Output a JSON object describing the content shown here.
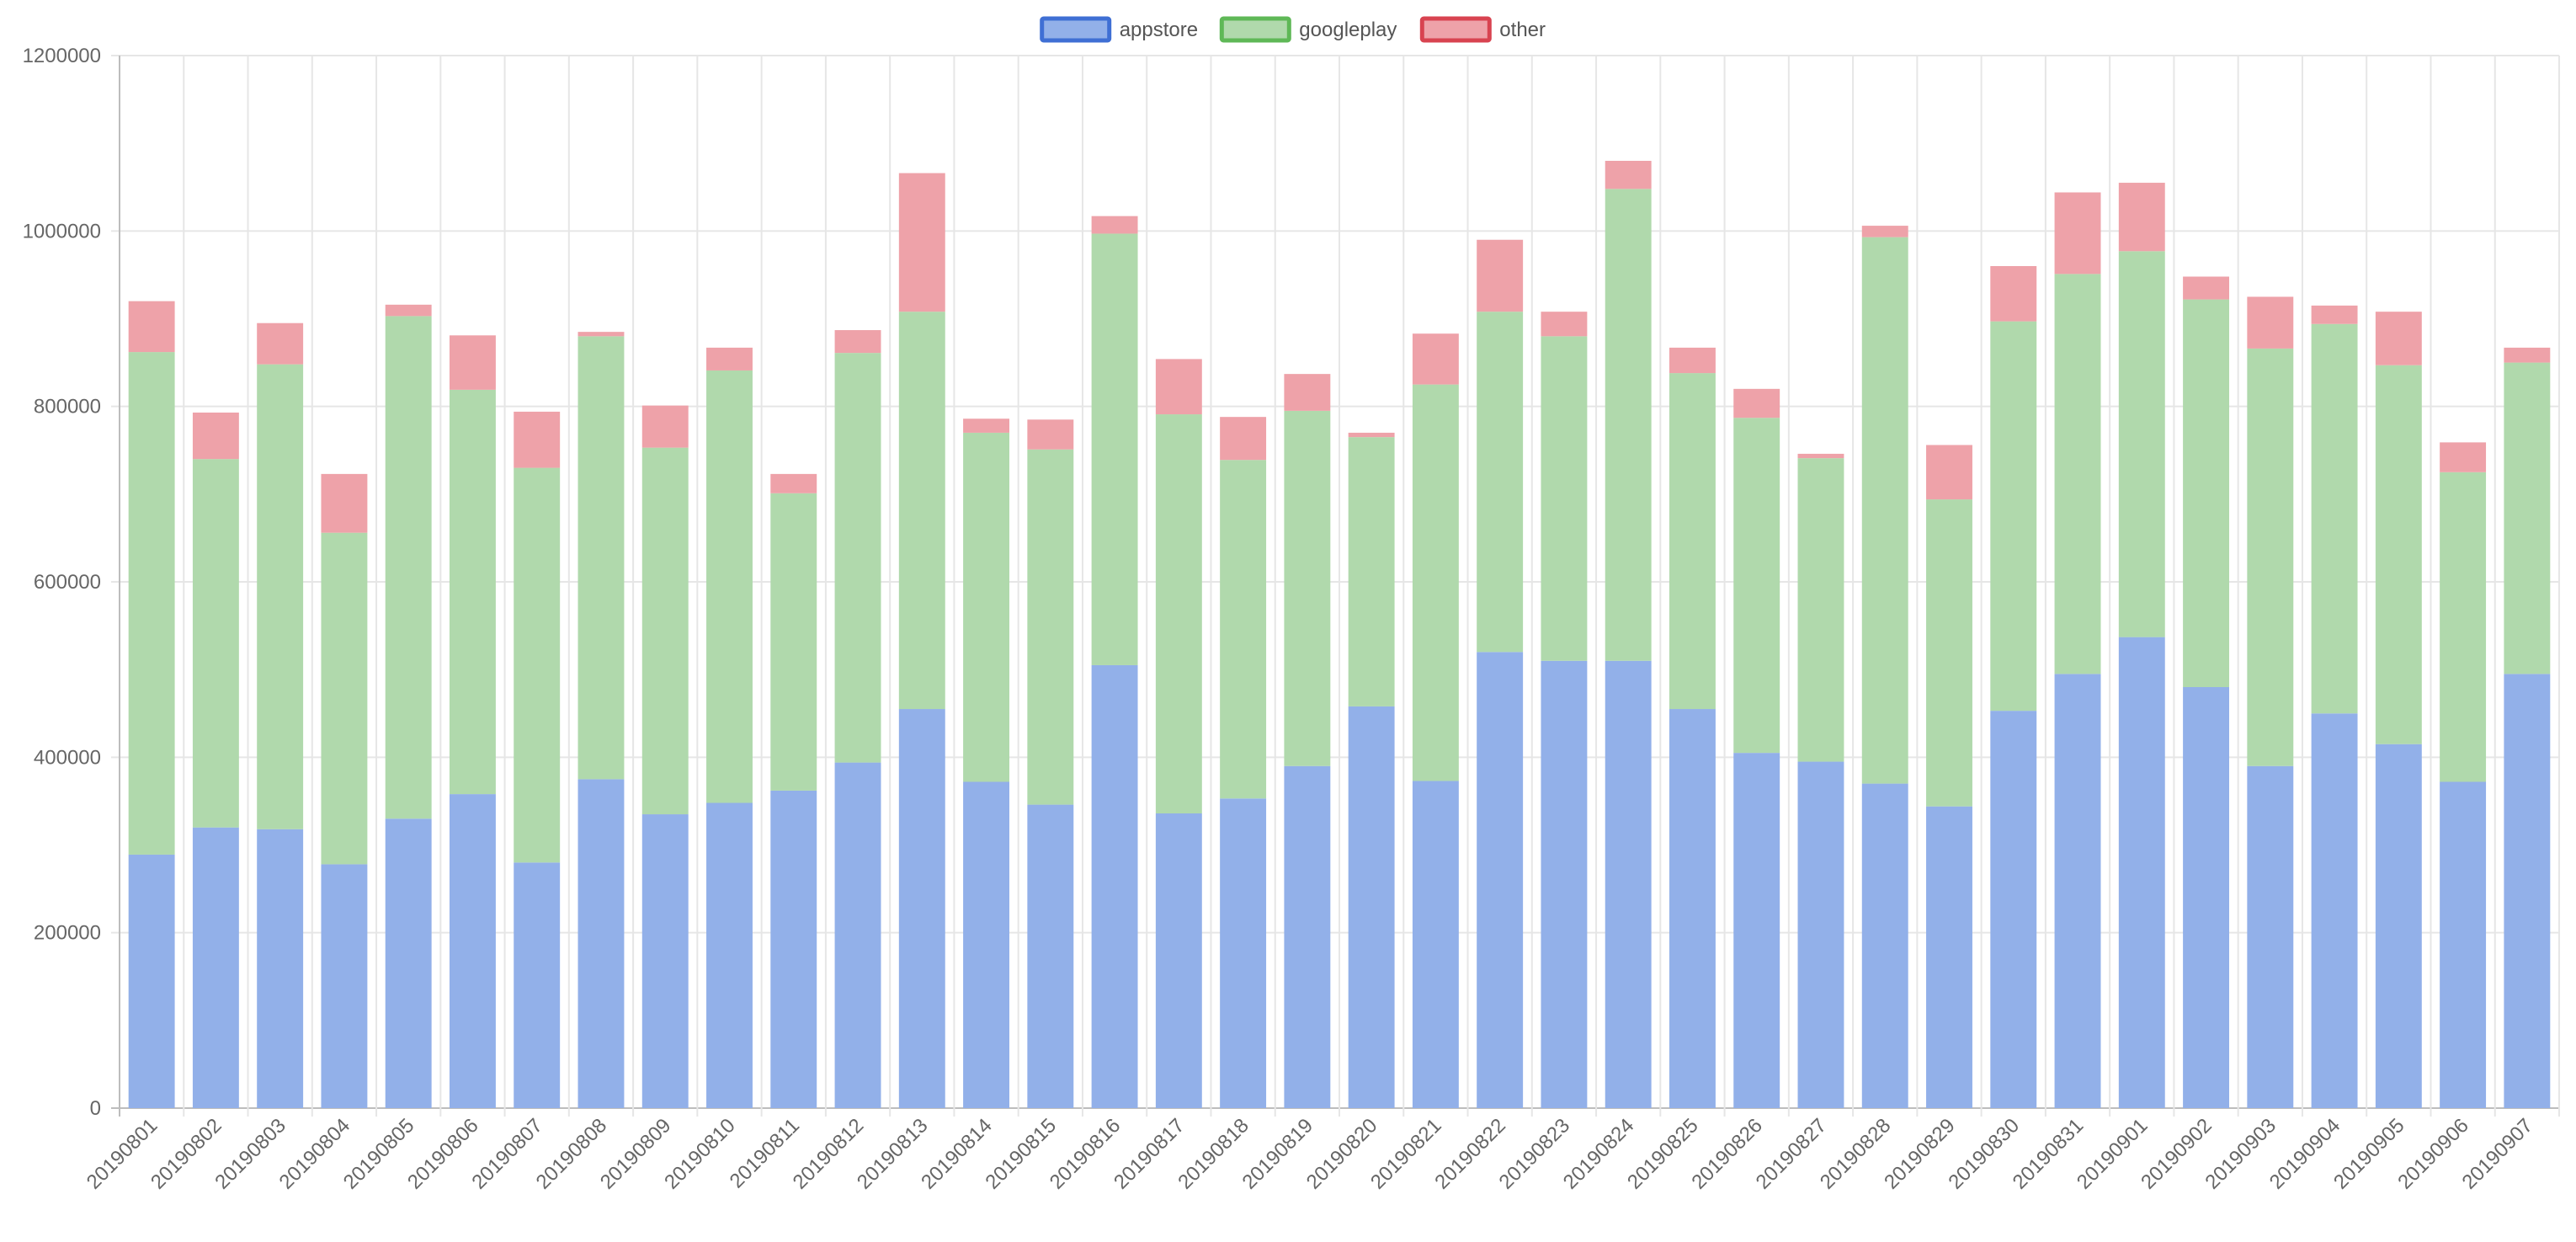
{
  "chart_data": {
    "type": "bar",
    "stacked": true,
    "title": "",
    "xlabel": "",
    "ylabel": "",
    "ylim": [
      0,
      1200000
    ],
    "yticks": [
      0,
      200000,
      400000,
      600000,
      800000,
      1000000,
      1200000
    ],
    "ytick_labels": [
      "0",
      "200000",
      "400000",
      "600000",
      "800000",
      "1000000",
      "1200000"
    ],
    "grid": true,
    "legend_position": "top-center",
    "categories": [
      "20190801",
      "20190802",
      "20190803",
      "20190804",
      "20190805",
      "20190806",
      "20190807",
      "20190808",
      "20190809",
      "20190810",
      "20190811",
      "20190812",
      "20190813",
      "20190814",
      "20190815",
      "20190816",
      "20190817",
      "20190818",
      "20190819",
      "20190820",
      "20190821",
      "20190822",
      "20190823",
      "20190824",
      "20190825",
      "20190826",
      "20190827",
      "20190828",
      "20190829",
      "20190830",
      "20190831",
      "20190901",
      "20190902",
      "20190903",
      "20190904",
      "20190905",
      "20190906",
      "20190907"
    ],
    "series": [
      {
        "name": "appstore",
        "color": "#92b0e9",
        "border_color": "#3f6fd4",
        "values": [
          289000,
          320000,
          318000,
          278000,
          330000,
          358000,
          280000,
          375000,
          335000,
          348000,
          362000,
          394000,
          455000,
          372000,
          346000,
          505000,
          336000,
          353000,
          390000,
          458000,
          373000,
          520000,
          510000,
          510000,
          455000,
          405000,
          395000,
          370000,
          344000,
          453000,
          495000,
          537000,
          480000,
          390000,
          450000,
          415000,
          372000,
          495000
        ]
      },
      {
        "name": "googleplay",
        "color": "#b0d9ac",
        "border_color": "#5fb857",
        "values": [
          573000,
          420000,
          530000,
          378000,
          573000,
          461000,
          450000,
          505000,
          418000,
          493000,
          339000,
          467000,
          453000,
          398000,
          405000,
          492000,
          455000,
          386000,
          405000,
          307000,
          452000,
          388000,
          370000,
          538000,
          383000,
          382000,
          346000,
          623000,
          350000,
          444000,
          456000,
          440000,
          442000,
          476000,
          444000,
          432000,
          353000,
          355000
        ]
      },
      {
        "name": "other",
        "color": "#eea2a9",
        "border_color": "#d84350",
        "values": [
          58000,
          53000,
          47000,
          67000,
          13000,
          62000,
          64000,
          5000,
          48000,
          26000,
          22000,
          26000,
          158000,
          16000,
          34000,
          20000,
          63000,
          49000,
          42000,
          5000,
          58000,
          82000,
          28000,
          32000,
          29000,
          33000,
          5000,
          13000,
          62000,
          63000,
          93000,
          78000,
          26000,
          59000,
          21000,
          61000,
          34000,
          17000
        ]
      }
    ]
  }
}
